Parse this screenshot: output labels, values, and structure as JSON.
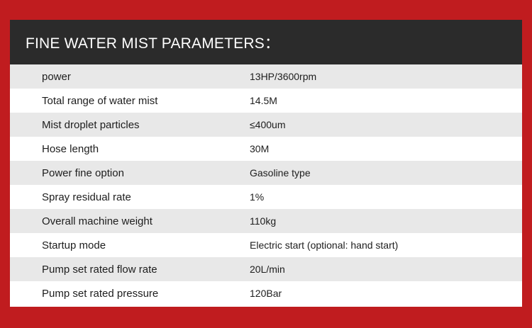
{
  "header": {
    "title": "FINE WATER MIST PARAMETERS："
  },
  "colors": {
    "background": "#c01c1f",
    "header_bg": "#2b2b2b",
    "row_shaded": "#e8e8e8",
    "row_plain": "#ffffff"
  },
  "table": {
    "rows": [
      {
        "label": "power",
        "value": "13HP/3600rpm"
      },
      {
        "label": "Total range of water mist",
        "value": "14.5M"
      },
      {
        "label": "Mist droplet particles",
        "value": "≤400um"
      },
      {
        "label": "Hose length",
        "value": "30M"
      },
      {
        "label": "Power fine option",
        "value": "Gasoline type"
      },
      {
        "label": "Spray residual rate",
        "value": "1%"
      },
      {
        "label": "Overall machine weight",
        "value": "110kg"
      },
      {
        "label": "Startup mode",
        "value": "Electric start (optional: hand start)"
      },
      {
        "label": "Pump set rated flow rate",
        "value": "20L/min"
      },
      {
        "label": "Pump set rated pressure",
        "value": "120Bar"
      }
    ]
  }
}
